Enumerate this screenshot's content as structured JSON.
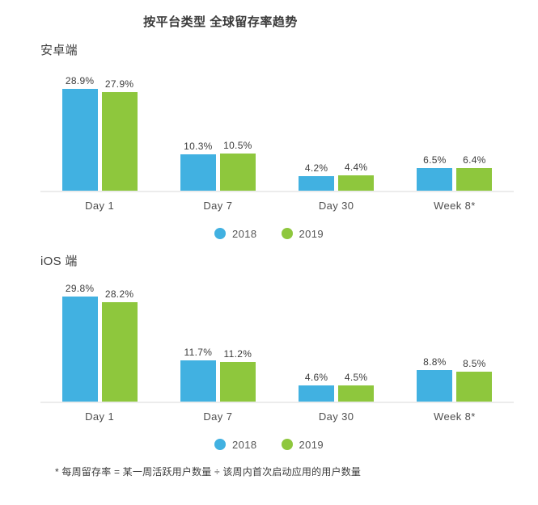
{
  "page": {
    "title": "按平台类型 全球留存率趋势",
    "footnote": "* 每周留存率 = 某一周活跃用户数量 ÷ 该周内首次启动应用的用户数量"
  },
  "colors": {
    "series_2018": "#41b1e1",
    "series_2019": "#8ec73d",
    "baseline": "#ececec"
  },
  "legend": {
    "items": [
      {
        "label": "2018",
        "color": "#41b1e1"
      },
      {
        "label": "2019",
        "color": "#8ec73d"
      }
    ]
  },
  "chart_data": [
    {
      "type": "bar",
      "title": "安卓端",
      "categories": [
        "Day 1",
        "Day 7",
        "Day 30",
        "Week 8*"
      ],
      "series": [
        {
          "name": "2018",
          "color": "#41b1e1",
          "values": [
            28.9,
            10.3,
            4.2,
            6.5
          ]
        },
        {
          "name": "2019",
          "color": "#8ec73d",
          "values": [
            27.9,
            10.5,
            4.4,
            6.4
          ]
        }
      ],
      "value_suffix": "%",
      "xlabel": "",
      "ylabel": "",
      "ylim": [
        0,
        32
      ],
      "grid": false,
      "legend_position": "bottom"
    },
    {
      "type": "bar",
      "title": "iOS 端",
      "categories": [
        "Day 1",
        "Day 7",
        "Day 30",
        "Week 8*"
      ],
      "series": [
        {
          "name": "2018",
          "color": "#41b1e1",
          "values": [
            29.8,
            11.7,
            4.6,
            8.8
          ]
        },
        {
          "name": "2019",
          "color": "#8ec73d",
          "values": [
            28.2,
            11.2,
            4.5,
            8.5
          ]
        }
      ],
      "value_suffix": "%",
      "xlabel": "",
      "ylabel": "",
      "ylim": [
        0,
        32
      ],
      "grid": false,
      "legend_position": "bottom"
    }
  ]
}
